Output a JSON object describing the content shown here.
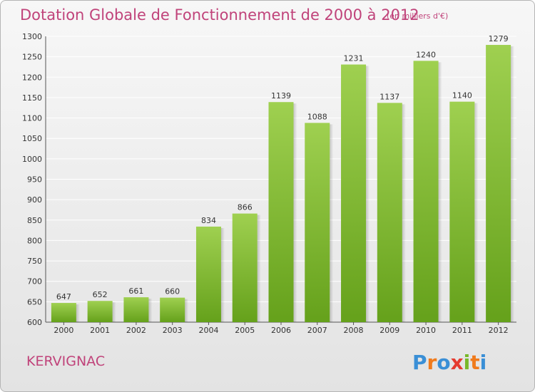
{
  "title": "Dotation Globale de Fonctionnement de 2000 à 2012",
  "subtitle": "(en milliers d'€)",
  "commune": "KERVIGNAC",
  "logo_text": "Proxiti",
  "colors": {
    "title": "#c0437a",
    "bar_top": "#9fd050",
    "bar_bottom": "#65a11b",
    "grid": "#ffffff"
  },
  "chart_data": {
    "type": "bar",
    "title": "Dotation Globale de Fonctionnement de 2000 à 2012",
    "subtitle": "(en milliers d'€)",
    "categories": [
      "2000",
      "2001",
      "2002",
      "2003",
      "2004",
      "2005",
      "2006",
      "2007",
      "2008",
      "2009",
      "2010",
      "2011",
      "2012"
    ],
    "values": [
      647,
      652,
      661,
      660,
      834,
      866,
      1139,
      1088,
      1231,
      1137,
      1240,
      1140,
      1279
    ],
    "xlabel": "",
    "ylabel": "",
    "ylim": [
      600,
      1300
    ],
    "yticks": [
      600,
      650,
      700,
      750,
      800,
      850,
      900,
      950,
      1000,
      1050,
      1100,
      1150,
      1200,
      1250,
      1300
    ],
    "grid": true,
    "data_labels": true
  }
}
